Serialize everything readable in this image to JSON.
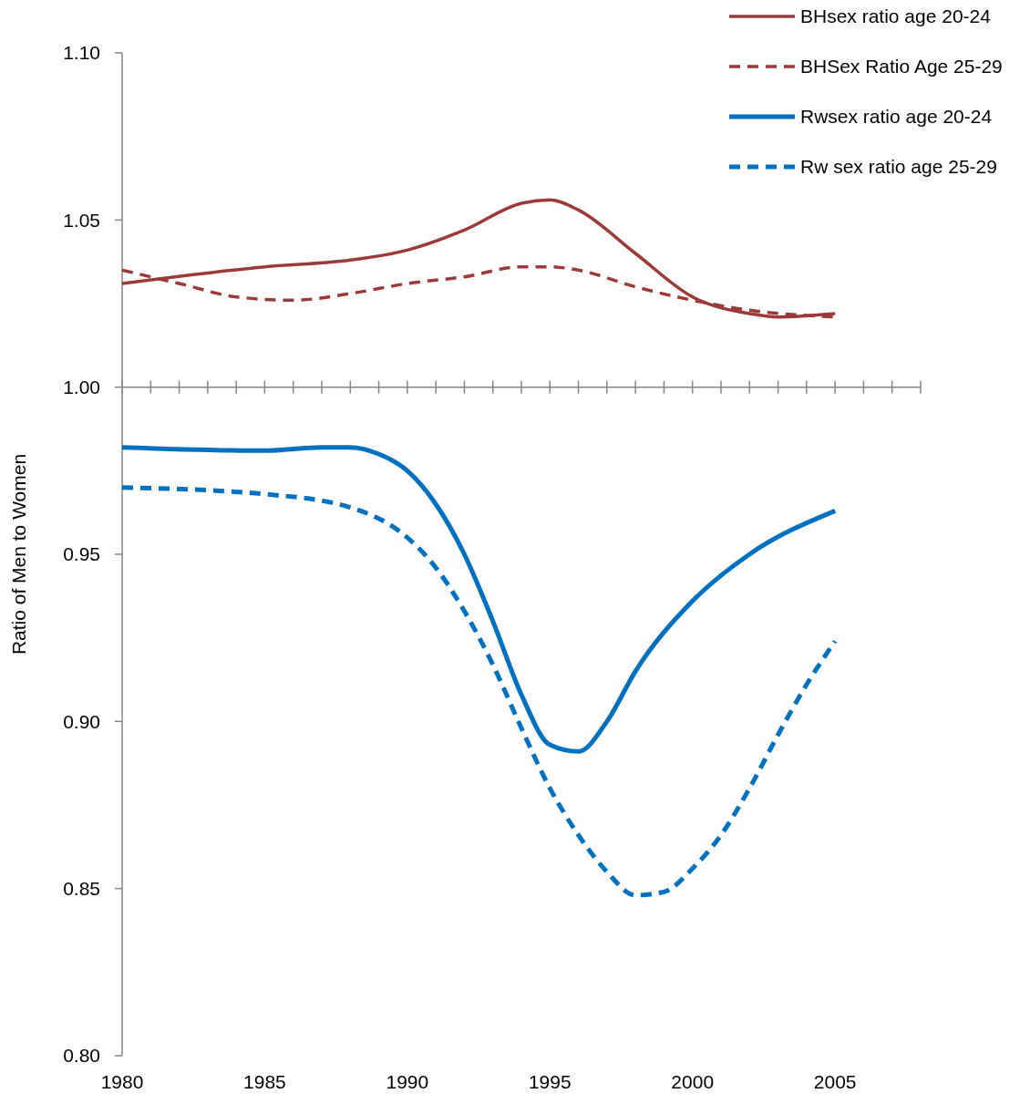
{
  "chart_data": {
    "type": "line",
    "ylabel": "Ratio of Men to Women",
    "xlim": [
      1980,
      2008
    ],
    "ylim": [
      0.8,
      1.1
    ],
    "yticks": [
      {
        "value": 0.8,
        "label": "0.80"
      },
      {
        "value": 0.85,
        "label": "0.85"
      },
      {
        "value": 0.9,
        "label": "0.90"
      },
      {
        "value": 0.95,
        "label": "0.95"
      },
      {
        "value": 1.0,
        "label": "1.00"
      },
      {
        "value": 1.05,
        "label": "1.05"
      },
      {
        "value": 1.1,
        "label": "1.10"
      }
    ],
    "xticks": [
      1980,
      1985,
      1990,
      1995,
      2000,
      2005
    ],
    "ref_lines": [
      {
        "axis": "y",
        "value": 1.0
      }
    ],
    "grid": false,
    "legend": "top right",
    "series": [
      {
        "name": "BHsex ratio age 20-24",
        "color": "#9b3a38",
        "line_style": "solid",
        "x": [
          1980,
          1985,
          1988,
          1990,
          1992,
          1994,
          1995,
          1996,
          1998,
          2000,
          2002,
          2003,
          2005
        ],
        "values": [
          1.031,
          1.036,
          1.038,
          1.041,
          1.047,
          1.055,
          1.056,
          1.053,
          1.04,
          1.027,
          1.022,
          1.021,
          1.022
        ]
      },
      {
        "name": "BHSex Ratio Age 25-29",
        "color": "#9b3a38",
        "line_style": "dashed",
        "x": [
          1980,
          1982,
          1984,
          1986,
          1988,
          1990,
          1992,
          1994,
          1995,
          1996,
          1998,
          2000,
          2002,
          2005
        ],
        "values": [
          1.035,
          1.031,
          1.027,
          1.026,
          1.028,
          1.031,
          1.033,
          1.036,
          1.036,
          1.035,
          1.03,
          1.026,
          1.023,
          1.021
        ]
      },
      {
        "name": "Rwsex ratio age 20-24",
        "color": "#0070c0",
        "line_style": "solid",
        "x": [
          1980,
          1985,
          1987,
          1988,
          1989,
          1990,
          1991,
          1992,
          1993,
          1994,
          1995,
          1996,
          1997,
          1998,
          2000,
          2002,
          2005
        ],
        "values": [
          0.982,
          0.981,
          0.982,
          0.982,
          0.98,
          0.975,
          0.965,
          0.95,
          0.93,
          0.908,
          0.893,
          0.891,
          0.9,
          0.915,
          0.936,
          0.95,
          0.963
        ]
      },
      {
        "name": "Rw sex ratio age 25-29",
        "color": "#0070c0",
        "line_style": "dashed",
        "x": [
          1980,
          1985,
          1988,
          1990,
          1991,
          1992,
          1993,
          1994,
          1995,
          1996,
          1997,
          1998,
          1999,
          2000,
          2001,
          2002,
          2003,
          2004,
          2005
        ],
        "values": [
          0.97,
          0.968,
          0.964,
          0.955,
          0.946,
          0.933,
          0.917,
          0.898,
          0.88,
          0.866,
          0.855,
          0.848,
          0.849,
          0.856,
          0.866,
          0.88,
          0.896,
          0.911,
          0.924
        ]
      }
    ]
  }
}
